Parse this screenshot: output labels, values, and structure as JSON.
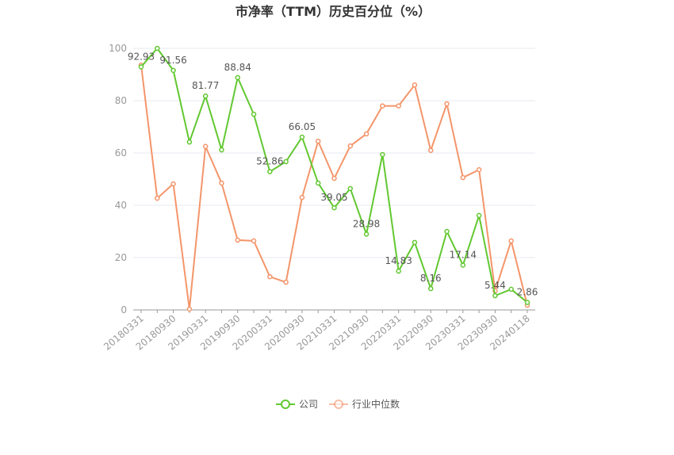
{
  "chart_data": {
    "type": "line",
    "title": "市净率（TTM）历史百分位（%）",
    "categories": [
      "20180331",
      null,
      "20180930",
      null,
      "20190331",
      null,
      "20190930",
      null,
      "20200331",
      null,
      "20200930",
      null,
      "20210331",
      null,
      "20210930",
      null,
      "20220331",
      null,
      "20220930",
      null,
      "20230331",
      null,
      "20230930",
      null,
      "20240118"
    ],
    "series": [
      {
        "name": "公司",
        "color": "#62c831",
        "values": [
          92.93,
          100,
          91.56,
          64.2,
          81.77,
          61.2,
          88.84,
          74.8,
          52.86,
          56.7,
          66.05,
          48.5,
          39.05,
          46.4,
          28.98,
          59.4,
          14.83,
          25.8,
          8.16,
          30.0,
          17.14,
          36.1,
          5.44,
          7.9,
          2.86
        ],
        "value_labels": [
          "92.93",
          null,
          "91.56",
          null,
          "81.77",
          null,
          "88.84",
          null,
          "52.86",
          null,
          "66.05",
          null,
          "39.05",
          null,
          "28.98",
          null,
          "14.83",
          null,
          "8.16",
          null,
          "17.14",
          null,
          "5.44",
          null,
          "2.86"
        ]
      },
      {
        "name": "行业中位数",
        "color": "#f4956a",
        "values": [
          93.6,
          42.7,
          48.2,
          0.3,
          62.5,
          48.5,
          26.7,
          26.4,
          12.7,
          10.6,
          43.0,
          64.5,
          50.3,
          62.7,
          67.3,
          78.0,
          78.0,
          86.0,
          61.0,
          78.8,
          50.6,
          53.6,
          7.3,
          26.4,
          1.8
        ]
      }
    ],
    "ylim": [
      0,
      100
    ],
    "yticks": [
      0,
      20,
      40,
      60,
      80,
      100
    ],
    "grid": true,
    "legend": "bottom"
  }
}
